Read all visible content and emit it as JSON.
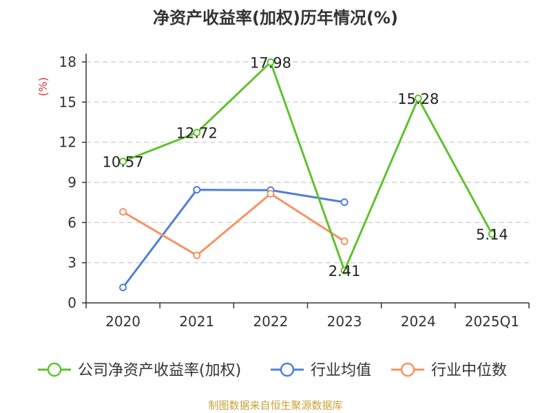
{
  "chart_data": {
    "type": "line",
    "title": "净资产收益率(加权)历年情况(%)",
    "ylabel": "(%)",
    "xlabel": "",
    "categories": [
      "2020",
      "2021",
      "2022",
      "2023",
      "2024",
      "2025Q1"
    ],
    "ylim": [
      0,
      18
    ],
    "yticks": [
      0,
      3,
      6,
      9,
      12,
      15,
      18
    ],
    "grid": true,
    "legend_position": "bottom",
    "series": [
      {
        "name": "公司净资产收益率(加权)",
        "color": "#5ec22b",
        "values": [
          10.57,
          12.72,
          17.98,
          2.41,
          15.28,
          5.14
        ],
        "labels": [
          "10.57",
          "12.72",
          "17.98",
          "2.41",
          "15.28",
          "5.14"
        ]
      },
      {
        "name": "行业均值",
        "color": "#4f7fd9",
        "values": [
          1.15,
          8.45,
          8.42,
          7.52,
          null,
          null
        ]
      },
      {
        "name": "行业中位数",
        "color": "#f59364",
        "values": [
          6.8,
          3.55,
          8.15,
          4.6,
          null,
          null
        ]
      }
    ],
    "source": "制图数据来自恒生聚源数据库"
  }
}
